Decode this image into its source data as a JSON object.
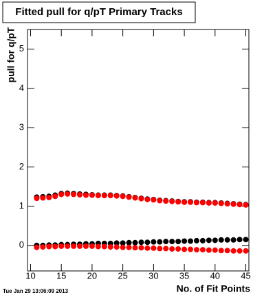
{
  "chart_data": {
    "type": "scatter",
    "title": "Fitted pull for q/pT Primary Tracks",
    "x_label": "No. of Fit Points",
    "y_label": "pull for q/pT",
    "timestamp": "Tue Jan 29 13:06:09 2013",
    "x": [
      11,
      12,
      13,
      14,
      15,
      16,
      17,
      18,
      19,
      20,
      21,
      22,
      23,
      24,
      25,
      26,
      27,
      28,
      29,
      30,
      31,
      32,
      33,
      34,
      35,
      36,
      37,
      38,
      39,
      40,
      41,
      42,
      43,
      44,
      45
    ],
    "series": [
      {
        "color": "#000000",
        "values": [
          1.23,
          1.24,
          1.25,
          1.28,
          1.32,
          1.33,
          1.32,
          1.31,
          1.3,
          1.29,
          1.28,
          1.28,
          1.28,
          1.27,
          1.26,
          1.24,
          1.22,
          1.2,
          1.18,
          1.17,
          1.15,
          1.14,
          1.13,
          1.12,
          1.11,
          1.11,
          1.1,
          1.1,
          1.09,
          1.09,
          1.08,
          1.07,
          1.06,
          1.05,
          1.04
        ]
      },
      {
        "color": "#ff0000",
        "values": [
          1.2,
          1.21,
          1.22,
          1.25,
          1.3,
          1.31,
          1.3,
          1.29,
          1.28,
          1.28,
          1.27,
          1.27,
          1.27,
          1.26,
          1.25,
          1.23,
          1.21,
          1.19,
          1.17,
          1.16,
          1.14,
          1.13,
          1.12,
          1.11,
          1.1,
          1.1,
          1.09,
          1.09,
          1.08,
          1.08,
          1.07,
          1.06,
          1.05,
          1.04,
          1.03
        ]
      },
      {
        "color": "#000000",
        "values": [
          0.0,
          0.0,
          0.01,
          0.01,
          0.02,
          0.02,
          0.03,
          0.03,
          0.04,
          0.04,
          0.05,
          0.05,
          0.05,
          0.06,
          0.06,
          0.07,
          0.07,
          0.08,
          0.08,
          0.09,
          0.09,
          0.1,
          0.1,
          0.1,
          0.11,
          0.11,
          0.12,
          0.12,
          0.13,
          0.13,
          0.14,
          0.14,
          0.14,
          0.15,
          0.15
        ]
      },
      {
        "color": "#ff0000",
        "values": [
          -0.05,
          -0.04,
          -0.03,
          -0.03,
          -0.02,
          -0.02,
          -0.02,
          -0.02,
          -0.02,
          -0.02,
          -0.03,
          -0.03,
          -0.04,
          -0.04,
          -0.05,
          -0.05,
          -0.06,
          -0.06,
          -0.07,
          -0.07,
          -0.08,
          -0.08,
          -0.09,
          -0.09,
          -0.1,
          -0.1,
          -0.11,
          -0.11,
          -0.12,
          -0.12,
          -0.13,
          -0.13,
          -0.14,
          -0.14,
          -0.14
        ]
      }
    ],
    "xlim": [
      9.5,
      45.5
    ],
    "xticks": [
      10,
      15,
      20,
      25,
      30,
      35,
      40,
      45
    ],
    "ylim": [
      -0.65,
      5.5
    ],
    "yticks": [
      0,
      1,
      2,
      3,
      4,
      5
    ]
  }
}
